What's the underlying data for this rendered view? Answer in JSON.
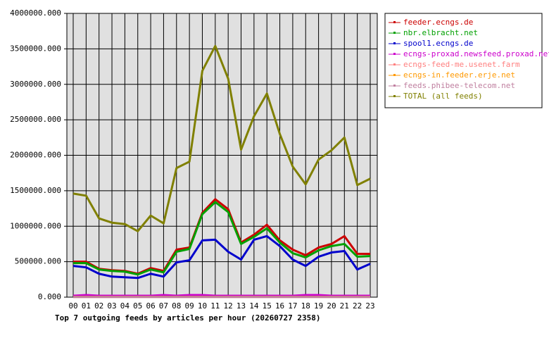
{
  "chart_data": {
    "type": "line",
    "title": "Top 7 outgoing feeds by articles per hour (20260727 2358)",
    "categories": [
      "00",
      "01",
      "02",
      "03",
      "04",
      "05",
      "06",
      "07",
      "08",
      "09",
      "10",
      "11",
      "12",
      "13",
      "14",
      "15",
      "16",
      "17",
      "18",
      "19",
      "20",
      "21",
      "22",
      "23"
    ],
    "series": [
      {
        "name": "feeder.ecngs.de",
        "color": "#cc0000",
        "values": [
          500000,
          500000,
          400000,
          380000,
          370000,
          330000,
          410000,
          370000,
          670000,
          700000,
          1190000,
          1380000,
          1240000,
          770000,
          880000,
          1020000,
          800000,
          670000,
          590000,
          700000,
          750000,
          860000,
          610000,
          610000
        ]
      },
      {
        "name": "nbr.elbracht.net",
        "color": "#00a000",
        "values": [
          480000,
          480000,
          390000,
          370000,
          360000,
          320000,
          390000,
          350000,
          640000,
          680000,
          1170000,
          1340000,
          1200000,
          750000,
          850000,
          970000,
          770000,
          620000,
          560000,
          660000,
          720000,
          750000,
          570000,
          580000
        ]
      },
      {
        "name": "spool1.ecngs.de",
        "color": "#0000cc",
        "values": [
          440000,
          420000,
          330000,
          290000,
          280000,
          270000,
          330000,
          290000,
          490000,
          520000,
          800000,
          810000,
          640000,
          530000,
          810000,
          860000,
          720000,
          530000,
          440000,
          570000,
          630000,
          650000,
          390000,
          470000
        ]
      },
      {
        "name": "ecngs-proxad.newsfeed.proxad.net",
        "color": "#cc00cc",
        "values": [
          20000,
          30000,
          20000,
          20000,
          20000,
          20000,
          20000,
          30000,
          20000,
          30000,
          30000,
          20000,
          20000,
          20000,
          20000,
          20000,
          20000,
          20000,
          30000,
          30000,
          20000,
          20000,
          20000,
          20000
        ]
      },
      {
        "name": "ecngs-feed-me.usenet.farm",
        "color": "#ff8080",
        "values": [
          5000,
          5000,
          5000,
          5000,
          5000,
          5000,
          5000,
          5000,
          5000,
          5000,
          5000,
          5000,
          5000,
          5000,
          5000,
          5000,
          5000,
          5000,
          5000,
          5000,
          5000,
          5000,
          5000,
          5000
        ]
      },
      {
        "name": "ecngs-in.feeder.erje.net",
        "color": "#ff9900",
        "values": [
          4000,
          4000,
          4000,
          4000,
          4000,
          4000,
          4000,
          4000,
          4000,
          4000,
          4000,
          4000,
          4000,
          4000,
          4000,
          4000,
          4000,
          4000,
          4000,
          4000,
          4000,
          4000,
          4000,
          4000
        ]
      },
      {
        "name": "feeds.phibee-telecom.net",
        "color": "#c080a0",
        "values": [
          3000,
          3000,
          3000,
          3000,
          3000,
          3000,
          3000,
          3000,
          3000,
          3000,
          3000,
          3000,
          3000,
          3000,
          3000,
          3000,
          3000,
          3000,
          3000,
          3000,
          3000,
          3000,
          3000,
          3000
        ]
      },
      {
        "name": "TOTAL (all feeds)",
        "color": "#808000",
        "values": [
          1460000,
          1430000,
          1110000,
          1050000,
          1030000,
          930000,
          1150000,
          1040000,
          1820000,
          1910000,
          3190000,
          3540000,
          3080000,
          2080000,
          2550000,
          2870000,
          2300000,
          1840000,
          1590000,
          1940000,
          2070000,
          2250000,
          1580000,
          1670000
        ]
      }
    ],
    "ylim": [
      0,
      4000000
    ],
    "yticks": [
      {
        "value": 0,
        "label": "0.000"
      },
      {
        "value": 500000,
        "label": "500000.000"
      },
      {
        "value": 1000000,
        "label": "1000000.000"
      },
      {
        "value": 1500000,
        "label": "1500000.000"
      },
      {
        "value": 2000000,
        "label": "2000000.000"
      },
      {
        "value": 2500000,
        "label": "2500000.000"
      },
      {
        "value": 3000000,
        "label": "3000000.000"
      },
      {
        "value": 3500000,
        "label": "3500000.000"
      },
      {
        "value": 4000000,
        "label": "4000000.000"
      }
    ],
    "grid": true,
    "legend": "right"
  }
}
